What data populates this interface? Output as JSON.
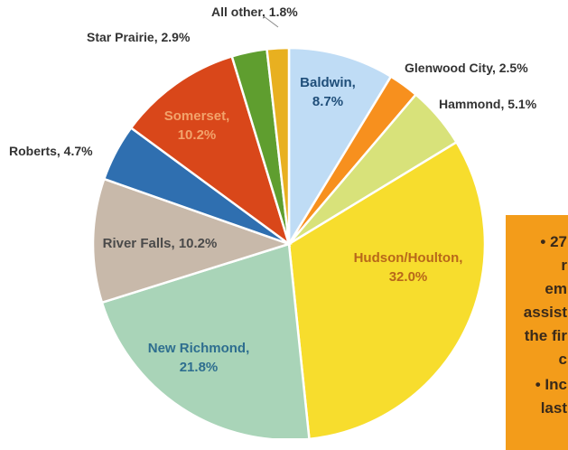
{
  "chart_data": {
    "type": "pie",
    "slices": [
      {
        "label": "Baldwin",
        "display": "Baldwin,\n8.7%",
        "value": 8.7,
        "color": "#bfdcf5",
        "text_color": "#1f4e79"
      },
      {
        "label": "Glenwood City",
        "display": "Glenwood City, 2.5%",
        "value": 2.5,
        "color": "#f7901e",
        "text_color": "#333333"
      },
      {
        "label": "Hammond",
        "display": "Hammond, 5.1%",
        "value": 5.1,
        "color": "#d8e27a",
        "text_color": "#333333"
      },
      {
        "label": "Hudson/Houlton",
        "display": "Hudson/Houlton,\n32.0%",
        "value": 32.0,
        "color": "#f7dd2d",
        "text_color": "#b8671a"
      },
      {
        "label": "New Richmond",
        "display": "New Richmond,\n21.8%",
        "value": 21.8,
        "color": "#a9d4b8",
        "text_color": "#2e6e8f"
      },
      {
        "label": "River Falls",
        "display": "River Falls, 10.2%",
        "value": 10.2,
        "color": "#c8b9aa",
        "text_color": "#4a4a4a"
      },
      {
        "label": "Roberts",
        "display": "Roberts, 4.7%",
        "value": 4.7,
        "color": "#2f6fb0",
        "text_color": "#333333"
      },
      {
        "label": "Somerset",
        "display": "Somerset,\n10.2%",
        "value": 10.2,
        "color": "#d9471a",
        "text_color": "#f2a36b"
      },
      {
        "label": "Star Prairie",
        "display": "Star Prairie, 2.9%",
        "value": 2.9,
        "color": "#5f9e2f",
        "text_color": "#333333"
      },
      {
        "label": "All other",
        "display": "All other, 1.8%",
        "value": 1.8,
        "color": "#e8b020",
        "text_color": "#333333"
      }
    ],
    "start_position": "top, clockwise"
  },
  "callout": {
    "lines": [
      "• 27",
      "r",
      "em",
      "assist",
      "the fir",
      "c",
      "• Inc",
      "last"
    ]
  }
}
